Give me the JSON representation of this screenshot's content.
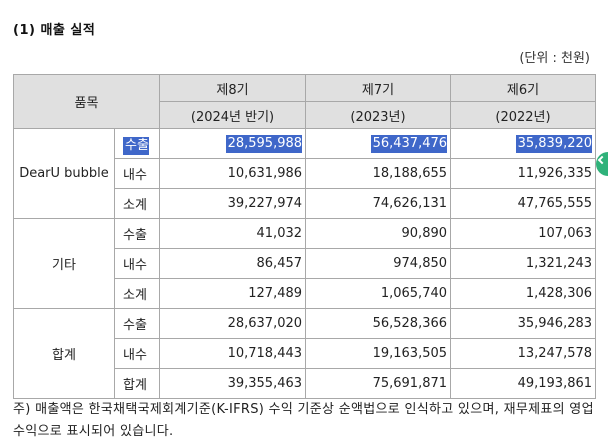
{
  "heading": "(1) 매출 실적",
  "unit": "(단위 : 천원)",
  "table": {
    "item_header": "품목",
    "periods": [
      {
        "name": "제8기",
        "year": "(2024년 반기)"
      },
      {
        "name": "제7기",
        "year": "(2023년)"
      },
      {
        "name": "제6기",
        "year": "(2022년)"
      }
    ],
    "groups": [
      {
        "name": "DearU bubble",
        "rows": [
          {
            "label": "수출",
            "values": [
              "28,595,988",
              "56,437,476",
              "35,839,220"
            ]
          },
          {
            "label": "내수",
            "values": [
              "10,631,986",
              "18,188,655",
              "11,926,335"
            ]
          },
          {
            "label": "소계",
            "values": [
              "39,227,974",
              "74,626,131",
              "47,765,555"
            ]
          }
        ]
      },
      {
        "name": "기타",
        "rows": [
          {
            "label": "수출",
            "values": [
              "41,032",
              "90,890",
              "107,063"
            ]
          },
          {
            "label": "내수",
            "values": [
              "86,457",
              "974,850",
              "1,321,243"
            ]
          },
          {
            "label": "소계",
            "values": [
              "127,489",
              "1,065,740",
              "1,428,306"
            ]
          }
        ]
      },
      {
        "name": "합계",
        "rows": [
          {
            "label": "수출",
            "values": [
              "28,637,020",
              "56,528,366",
              "35,946,283"
            ]
          },
          {
            "label": "내수",
            "values": [
              "10,718,443",
              "19,163,505",
              "13,247,578"
            ]
          },
          {
            "label": "합계",
            "values": [
              "39,355,463",
              "75,691,871",
              "49,193,861"
            ]
          }
        ]
      }
    ]
  },
  "note": "주) 매출액은 한국채택국제회계기준(K-IFRS) 수익 기준상 순액법으로 인식하고 있으며, 재무제표의 영업수익으로 표시되어 있습니다.",
  "colors": {
    "selection": "#3f67c9",
    "header_bg": "#e0e0e0",
    "side_tab": "#2fb27a"
  },
  "icons": {
    "side_tab": "chevron-left-icon"
  }
}
